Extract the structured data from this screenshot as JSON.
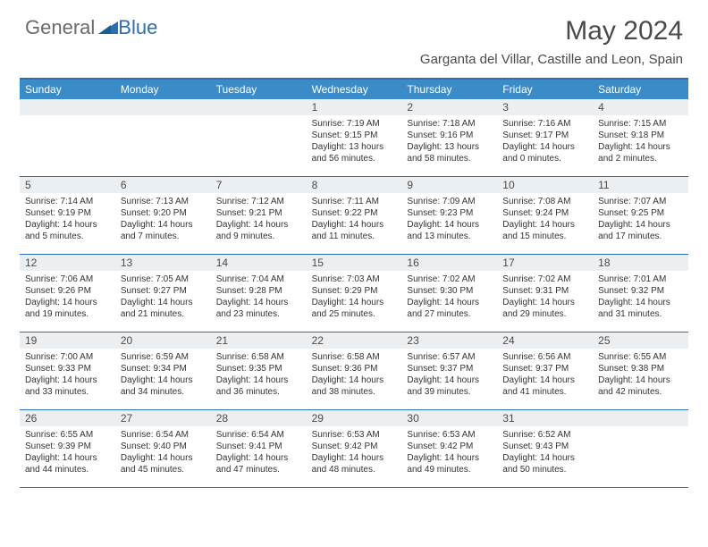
{
  "brand": {
    "part1": "General",
    "part2": "Blue"
  },
  "title": "May 2024",
  "location": "Garganta del Villar, Castille and Leon, Spain",
  "colors": {
    "header_bar": "#3b8bc9",
    "border": "#2b6fb0",
    "daynum_bg": "#eceff2",
    "text": "#4a4a4a",
    "brand_gray": "#6a6a6a",
    "brand_blue": "#2b6fb0"
  },
  "weekdays": [
    "Sunday",
    "Monday",
    "Tuesday",
    "Wednesday",
    "Thursday",
    "Friday",
    "Saturday"
  ],
  "weeks": [
    [
      {
        "n": "",
        "empty": true
      },
      {
        "n": "",
        "empty": true
      },
      {
        "n": "",
        "empty": true
      },
      {
        "n": "1",
        "sunrise": "7:19 AM",
        "sunset": "9:15 PM",
        "daylight": "13 hours and 56 minutes."
      },
      {
        "n": "2",
        "sunrise": "7:18 AM",
        "sunset": "9:16 PM",
        "daylight": "13 hours and 58 minutes."
      },
      {
        "n": "3",
        "sunrise": "7:16 AM",
        "sunset": "9:17 PM",
        "daylight": "14 hours and 0 minutes."
      },
      {
        "n": "4",
        "sunrise": "7:15 AM",
        "sunset": "9:18 PM",
        "daylight": "14 hours and 2 minutes."
      }
    ],
    [
      {
        "n": "5",
        "sunrise": "7:14 AM",
        "sunset": "9:19 PM",
        "daylight": "14 hours and 5 minutes."
      },
      {
        "n": "6",
        "sunrise": "7:13 AM",
        "sunset": "9:20 PM",
        "daylight": "14 hours and 7 minutes."
      },
      {
        "n": "7",
        "sunrise": "7:12 AM",
        "sunset": "9:21 PM",
        "daylight": "14 hours and 9 minutes."
      },
      {
        "n": "8",
        "sunrise": "7:11 AM",
        "sunset": "9:22 PM",
        "daylight": "14 hours and 11 minutes."
      },
      {
        "n": "9",
        "sunrise": "7:09 AM",
        "sunset": "9:23 PM",
        "daylight": "14 hours and 13 minutes."
      },
      {
        "n": "10",
        "sunrise": "7:08 AM",
        "sunset": "9:24 PM",
        "daylight": "14 hours and 15 minutes."
      },
      {
        "n": "11",
        "sunrise": "7:07 AM",
        "sunset": "9:25 PM",
        "daylight": "14 hours and 17 minutes."
      }
    ],
    [
      {
        "n": "12",
        "sunrise": "7:06 AM",
        "sunset": "9:26 PM",
        "daylight": "14 hours and 19 minutes."
      },
      {
        "n": "13",
        "sunrise": "7:05 AM",
        "sunset": "9:27 PM",
        "daylight": "14 hours and 21 minutes."
      },
      {
        "n": "14",
        "sunrise": "7:04 AM",
        "sunset": "9:28 PM",
        "daylight": "14 hours and 23 minutes."
      },
      {
        "n": "15",
        "sunrise": "7:03 AM",
        "sunset": "9:29 PM",
        "daylight": "14 hours and 25 minutes."
      },
      {
        "n": "16",
        "sunrise": "7:02 AM",
        "sunset": "9:30 PM",
        "daylight": "14 hours and 27 minutes."
      },
      {
        "n": "17",
        "sunrise": "7:02 AM",
        "sunset": "9:31 PM",
        "daylight": "14 hours and 29 minutes."
      },
      {
        "n": "18",
        "sunrise": "7:01 AM",
        "sunset": "9:32 PM",
        "daylight": "14 hours and 31 minutes."
      }
    ],
    [
      {
        "n": "19",
        "sunrise": "7:00 AM",
        "sunset": "9:33 PM",
        "daylight": "14 hours and 33 minutes."
      },
      {
        "n": "20",
        "sunrise": "6:59 AM",
        "sunset": "9:34 PM",
        "daylight": "14 hours and 34 minutes."
      },
      {
        "n": "21",
        "sunrise": "6:58 AM",
        "sunset": "9:35 PM",
        "daylight": "14 hours and 36 minutes."
      },
      {
        "n": "22",
        "sunrise": "6:58 AM",
        "sunset": "9:36 PM",
        "daylight": "14 hours and 38 minutes."
      },
      {
        "n": "23",
        "sunrise": "6:57 AM",
        "sunset": "9:37 PM",
        "daylight": "14 hours and 39 minutes."
      },
      {
        "n": "24",
        "sunrise": "6:56 AM",
        "sunset": "9:37 PM",
        "daylight": "14 hours and 41 minutes."
      },
      {
        "n": "25",
        "sunrise": "6:55 AM",
        "sunset": "9:38 PM",
        "daylight": "14 hours and 42 minutes."
      }
    ],
    [
      {
        "n": "26",
        "sunrise": "6:55 AM",
        "sunset": "9:39 PM",
        "daylight": "14 hours and 44 minutes."
      },
      {
        "n": "27",
        "sunrise": "6:54 AM",
        "sunset": "9:40 PM",
        "daylight": "14 hours and 45 minutes."
      },
      {
        "n": "28",
        "sunrise": "6:54 AM",
        "sunset": "9:41 PM",
        "daylight": "14 hours and 47 minutes."
      },
      {
        "n": "29",
        "sunrise": "6:53 AM",
        "sunset": "9:42 PM",
        "daylight": "14 hours and 48 minutes."
      },
      {
        "n": "30",
        "sunrise": "6:53 AM",
        "sunset": "9:42 PM",
        "daylight": "14 hours and 49 minutes."
      },
      {
        "n": "31",
        "sunrise": "6:52 AM",
        "sunset": "9:43 PM",
        "daylight": "14 hours and 50 minutes."
      },
      {
        "n": "",
        "empty": true
      }
    ]
  ]
}
